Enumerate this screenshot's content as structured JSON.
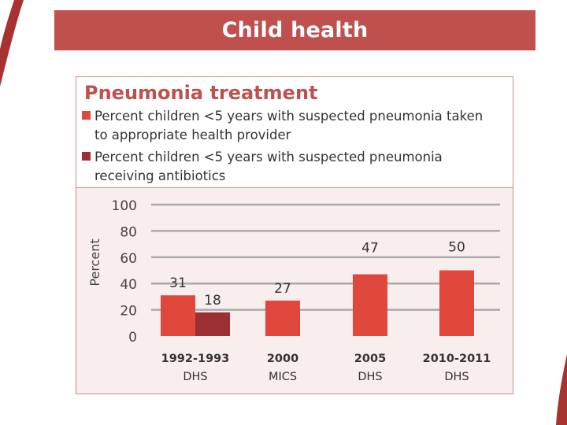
{
  "slide": {
    "title": "Child health"
  },
  "theme": {
    "accent": "#c0504d",
    "series1_color": "#e0473d",
    "series2_color": "#9b2f31",
    "panel_bg": "#f9eeee",
    "grid_color": "#aaaaaa"
  },
  "chart_data": {
    "type": "bar",
    "title": "Pneumonia treatment",
    "ylabel": "Percent",
    "xlabel": "",
    "ylim": [
      0,
      100
    ],
    "yticks": [
      0,
      20,
      40,
      60,
      80,
      100
    ],
    "grid": true,
    "legend_position": "top",
    "categories": [
      {
        "line1": "1992-1993",
        "line2": "DHS"
      },
      {
        "line1": "2000",
        "line2": "MICS"
      },
      {
        "line1": "2005",
        "line2": "DHS"
      },
      {
        "line1": "2010-2011",
        "line2": "DHS"
      }
    ],
    "series": [
      {
        "name": "Percent children <5 years with suspected pneumonia taken to appropriate health provider",
        "color": "#e0473d",
        "values": [
          31,
          27,
          47,
          50
        ]
      },
      {
        "name": "Percent children <5 years with suspected pneumonia receiving antibiotics",
        "color": "#9b2f31",
        "values": [
          18,
          null,
          null,
          null
        ]
      }
    ]
  }
}
